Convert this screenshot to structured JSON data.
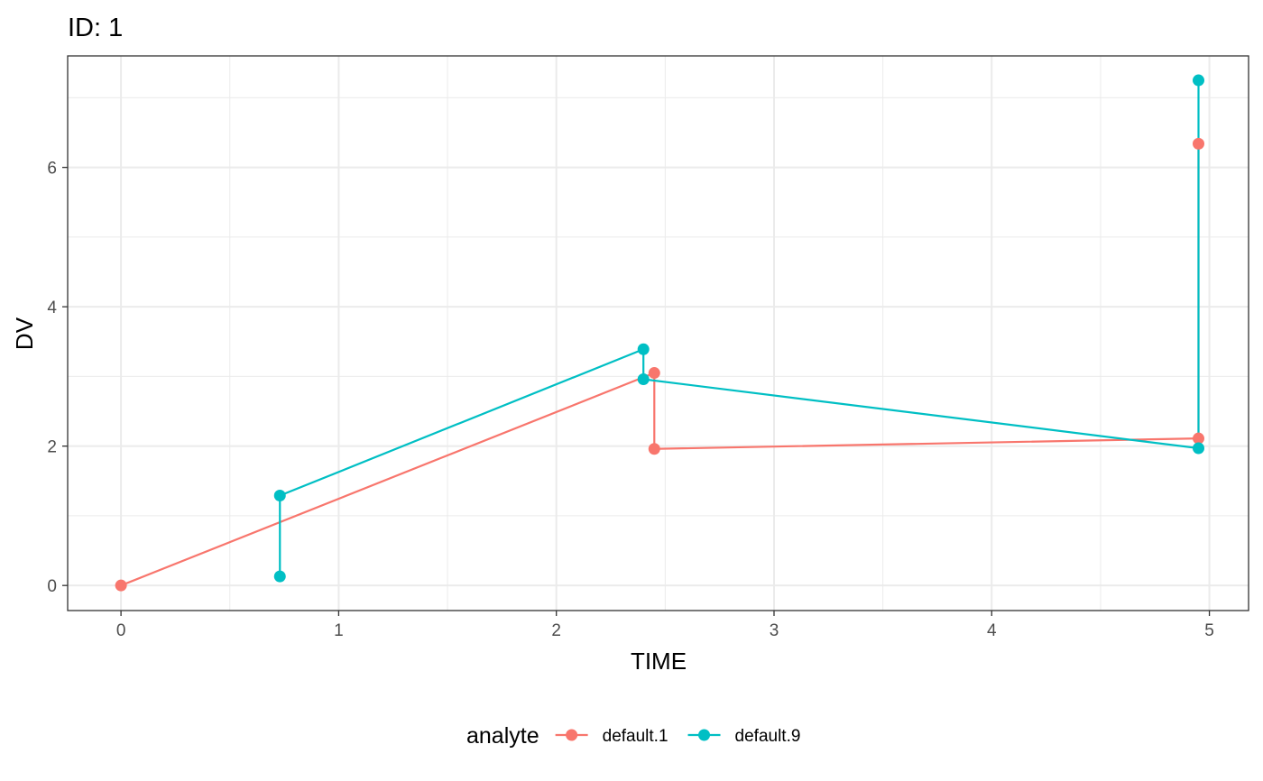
{
  "chart_data": {
    "type": "line",
    "title": "ID: 1",
    "xlabel": "TIME",
    "ylabel": "DV",
    "xlim": [
      -0.245,
      5.18
    ],
    "ylim": [
      -0.36,
      7.6
    ],
    "x_ticks": [
      0,
      1,
      2,
      3,
      4,
      5
    ],
    "y_ticks": [
      0,
      2,
      4,
      6
    ],
    "grid": true,
    "legend": {
      "title": "analyte",
      "position": "bottom"
    },
    "series": [
      {
        "name": "default.1",
        "color": "#F8766D",
        "points": [
          {
            "x": 0,
            "y": 0
          },
          {
            "x": 2.45,
            "y": 3.05
          },
          {
            "x": 2.45,
            "y": 1.96
          },
          {
            "x": 4.95,
            "y": 2.11
          },
          {
            "x": 4.95,
            "y": 6.34
          }
        ]
      },
      {
        "name": "default.9",
        "color": "#00BFC4",
        "points": [
          {
            "x": 0.73,
            "y": 0.13
          },
          {
            "x": 0.73,
            "y": 1.29
          },
          {
            "x": 2.4,
            "y": 3.39
          },
          {
            "x": 2.4,
            "y": 2.96
          },
          {
            "x": 4.95,
            "y": 1.97
          },
          {
            "x": 4.95,
            "y": 7.25
          }
        ]
      }
    ]
  }
}
